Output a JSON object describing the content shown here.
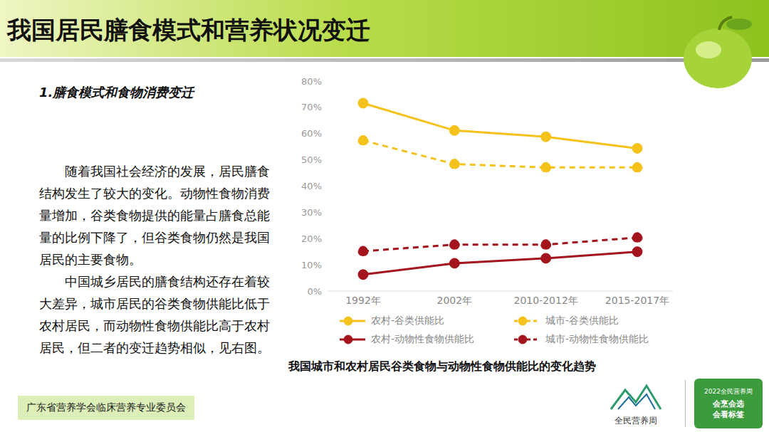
{
  "slide": {
    "title": "我国居民膳食模式和营养状况变迁",
    "section": "1.膳食模式和食物消费变迁",
    "paragraphs": [
      "随着我国社会经济的发展，居民膳食结构发生了较大的变化。动物性食物消费量增加，谷类食物提供的能量占膳食总能量的比例下降了，但谷类食物仍然是我国居民的主要食物。",
      "中国城乡居民的膳食结构还存在着较大差异，城市居民的谷类食物供能比低于农村居民，而动物性食物供能比高于农村居民，但二者的变迁趋势相似，见右图。"
    ],
    "footer": "广东省营养学会临床营养专业委员会",
    "logo_left": "全民营养周",
    "logo_right": [
      "2022全民营养周",
      "会烹会选",
      "会看标签"
    ]
  },
  "chart_data": {
    "type": "line",
    "title": "我国城市和农村居民谷类食物与动物性食物供能比的变化趋势",
    "categories": [
      "1992年",
      "2002年",
      "2010-2012年",
      "2015-2017年"
    ],
    "series": [
      {
        "name": "农村-谷类供能比",
        "color": "#f5c21b",
        "line_style": "solid",
        "marker": "circle",
        "values": [
          71.6,
          61.2,
          58.8,
          54.4
        ]
      },
      {
        "name": "城市-谷类供能比",
        "color": "#f5c21b",
        "line_style": "dashed",
        "marker": "circle",
        "values": [
          57.4,
          48.4,
          47.1,
          47.1
        ]
      },
      {
        "name": "农村-动物性食物供能比",
        "color": "#a3141c",
        "line_style": "solid",
        "marker": "circle",
        "values": [
          6.3,
          10.6,
          12.5,
          15.0
        ]
      },
      {
        "name": "城市-动物性食物供能比",
        "color": "#a3141c",
        "line_style": "dashed",
        "marker": "circle",
        "values": [
          15.2,
          17.7,
          17.7,
          20.4
        ]
      }
    ],
    "ylim": [
      0,
      80
    ],
    "yticks": [
      {
        "value": 0,
        "label": "0%"
      },
      {
        "value": 10,
        "label": "10%"
      },
      {
        "value": 20,
        "label": "20%"
      },
      {
        "value": 30,
        "label": "30%"
      },
      {
        "value": 40,
        "label": "40%"
      },
      {
        "value": 50,
        "label": "50%"
      },
      {
        "value": 60,
        "label": "60%"
      },
      {
        "value": 70,
        "label": "70%"
      },
      {
        "value": 80,
        "label": "80%"
      }
    ],
    "grid": false,
    "legend": "bottom"
  }
}
